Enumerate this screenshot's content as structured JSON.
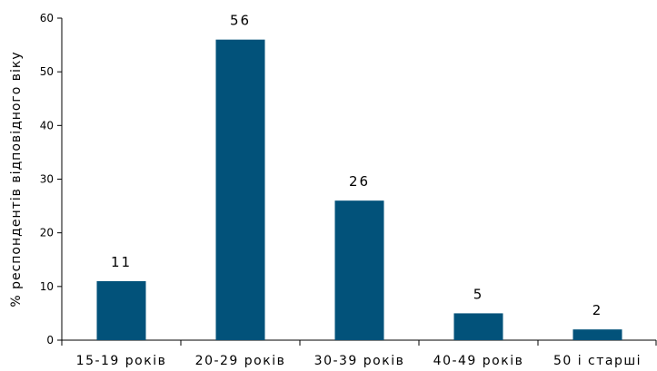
{
  "chart_data": {
    "type": "bar",
    "categories": [
      "15-19 років",
      "20-29 років",
      "30-39 років",
      "40-49 років",
      "50 і старші"
    ],
    "values": [
      11,
      56,
      26,
      5,
      2
    ],
    "data_labels": [
      "11",
      "56",
      "26",
      "5",
      "2"
    ],
    "title": "",
    "xlabel": "",
    "ylabel": "% респондентів відповідного віку",
    "ylim": [
      0,
      60
    ],
    "yticks": [
      0,
      10,
      20,
      30,
      40,
      50,
      60
    ],
    "grid": false,
    "legend": "none",
    "bar_color": "#02527A",
    "axis_color": "#000000"
  }
}
